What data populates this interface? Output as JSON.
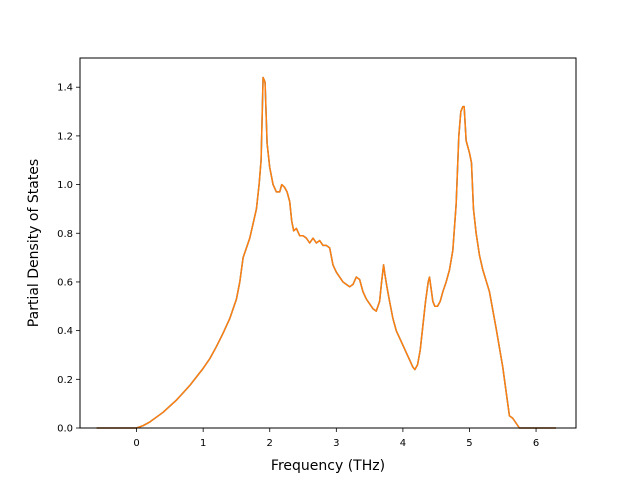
{
  "chart_data": {
    "type": "line",
    "title": "",
    "xlabel": "Frequency (THz)",
    "ylabel": "Partial Density of States",
    "xlim": [
      -0.85,
      6.6
    ],
    "ylim": [
      0.0,
      1.52
    ],
    "x_ticks": [
      0,
      1,
      2,
      3,
      4,
      5,
      6
    ],
    "y_ticks": [
      0.0,
      0.2,
      0.4,
      0.6,
      0.8,
      1.0,
      1.2,
      1.4
    ],
    "x_tick_labels": [
      "0",
      "1",
      "2",
      "3",
      "4",
      "5",
      "6"
    ],
    "y_tick_labels": [
      "0.0",
      "0.2",
      "0.4",
      "0.6",
      "0.8",
      "1.0",
      "1.2",
      "1.4"
    ],
    "grid": false,
    "legend": "none",
    "series": [
      {
        "color": "#1f77b4",
        "x": [
          -0.6,
          0.0,
          0.1,
          0.2,
          0.3,
          0.4,
          0.5,
          0.6,
          0.7,
          0.8,
          0.9,
          1.0,
          1.1,
          1.2,
          1.3,
          1.4,
          1.5,
          1.55,
          1.6,
          1.65,
          1.7,
          1.75,
          1.8,
          1.84,
          1.87,
          1.9,
          1.93,
          1.96,
          2.0,
          2.05,
          2.1,
          2.15,
          2.18,
          2.22,
          2.26,
          2.3,
          2.33,
          2.36,
          2.4,
          2.45,
          2.5,
          2.55,
          2.6,
          2.65,
          2.7,
          2.75,
          2.8,
          2.85,
          2.9,
          2.95,
          3.0,
          3.05,
          3.1,
          3.15,
          3.2,
          3.25,
          3.3,
          3.35,
          3.4,
          3.45,
          3.5,
          3.55,
          3.6,
          3.65,
          3.68,
          3.71,
          3.73,
          3.76,
          3.8,
          3.85,
          3.9,
          3.95,
          4.0,
          4.05,
          4.1,
          4.15,
          4.18,
          4.22,
          4.26,
          4.3,
          4.34,
          4.38,
          4.4,
          4.42,
          4.45,
          4.48,
          4.52,
          4.56,
          4.6,
          4.65,
          4.7,
          4.75,
          4.8,
          4.84,
          4.87,
          4.9,
          4.92,
          4.95,
          5.0,
          5.03,
          5.06,
          5.1,
          5.15,
          5.2,
          5.3,
          5.4,
          5.5,
          5.55,
          5.6,
          5.65,
          5.7,
          5.75,
          6.3
        ],
        "y": [
          0.0,
          0.0,
          0.01,
          0.025,
          0.045,
          0.065,
          0.09,
          0.115,
          0.145,
          0.175,
          0.21,
          0.245,
          0.285,
          0.335,
          0.39,
          0.45,
          0.53,
          0.6,
          0.7,
          0.74,
          0.78,
          0.84,
          0.9,
          1.0,
          1.1,
          1.44,
          1.42,
          1.17,
          1.07,
          1.0,
          0.97,
          0.97,
          1.0,
          0.99,
          0.97,
          0.93,
          0.85,
          0.81,
          0.82,
          0.79,
          0.79,
          0.78,
          0.76,
          0.78,
          0.76,
          0.77,
          0.75,
          0.75,
          0.74,
          0.67,
          0.64,
          0.62,
          0.6,
          0.59,
          0.58,
          0.59,
          0.62,
          0.61,
          0.56,
          0.53,
          0.51,
          0.49,
          0.48,
          0.52,
          0.6,
          0.67,
          0.63,
          0.58,
          0.52,
          0.45,
          0.4,
          0.37,
          0.34,
          0.31,
          0.28,
          0.25,
          0.24,
          0.26,
          0.32,
          0.42,
          0.52,
          0.6,
          0.62,
          0.58,
          0.52,
          0.5,
          0.5,
          0.52,
          0.56,
          0.6,
          0.65,
          0.73,
          0.92,
          1.2,
          1.3,
          1.32,
          1.32,
          1.18,
          1.13,
          1.09,
          0.9,
          0.8,
          0.71,
          0.65,
          0.56,
          0.41,
          0.25,
          0.15,
          0.05,
          0.04,
          0.02,
          0.0,
          0.0
        ]
      },
      {
        "color": "#ff7f0e",
        "x": [
          -0.6,
          0.0,
          0.1,
          0.2,
          0.3,
          0.4,
          0.5,
          0.6,
          0.7,
          0.8,
          0.9,
          1.0,
          1.1,
          1.2,
          1.3,
          1.4,
          1.5,
          1.55,
          1.6,
          1.65,
          1.7,
          1.75,
          1.8,
          1.84,
          1.87,
          1.9,
          1.93,
          1.96,
          2.0,
          2.05,
          2.1,
          2.15,
          2.18,
          2.22,
          2.26,
          2.3,
          2.33,
          2.36,
          2.4,
          2.45,
          2.5,
          2.55,
          2.6,
          2.65,
          2.7,
          2.75,
          2.8,
          2.85,
          2.9,
          2.95,
          3.0,
          3.05,
          3.1,
          3.15,
          3.2,
          3.25,
          3.3,
          3.35,
          3.4,
          3.45,
          3.5,
          3.55,
          3.6,
          3.65,
          3.68,
          3.71,
          3.73,
          3.76,
          3.8,
          3.85,
          3.9,
          3.95,
          4.0,
          4.05,
          4.1,
          4.15,
          4.18,
          4.22,
          4.26,
          4.3,
          4.34,
          4.38,
          4.4,
          4.42,
          4.45,
          4.48,
          4.52,
          4.56,
          4.6,
          4.65,
          4.7,
          4.75,
          4.8,
          4.84,
          4.87,
          4.9,
          4.92,
          4.95,
          5.0,
          5.03,
          5.06,
          5.1,
          5.15,
          5.2,
          5.3,
          5.4,
          5.5,
          5.55,
          5.6,
          5.65,
          5.7,
          5.75,
          6.3
        ],
        "y": [
          0.0,
          0.0,
          0.01,
          0.025,
          0.045,
          0.065,
          0.09,
          0.115,
          0.145,
          0.175,
          0.21,
          0.245,
          0.285,
          0.335,
          0.39,
          0.45,
          0.53,
          0.6,
          0.7,
          0.74,
          0.78,
          0.84,
          0.9,
          1.0,
          1.1,
          1.44,
          1.42,
          1.17,
          1.07,
          1.0,
          0.97,
          0.97,
          1.0,
          0.99,
          0.97,
          0.93,
          0.85,
          0.81,
          0.82,
          0.79,
          0.79,
          0.78,
          0.76,
          0.78,
          0.76,
          0.77,
          0.75,
          0.75,
          0.74,
          0.67,
          0.64,
          0.62,
          0.6,
          0.59,
          0.58,
          0.59,
          0.62,
          0.61,
          0.56,
          0.53,
          0.51,
          0.49,
          0.48,
          0.52,
          0.6,
          0.67,
          0.63,
          0.58,
          0.52,
          0.45,
          0.4,
          0.37,
          0.34,
          0.31,
          0.28,
          0.25,
          0.24,
          0.26,
          0.32,
          0.42,
          0.52,
          0.6,
          0.62,
          0.58,
          0.52,
          0.5,
          0.5,
          0.52,
          0.56,
          0.6,
          0.65,
          0.73,
          0.92,
          1.2,
          1.3,
          1.32,
          1.32,
          1.18,
          1.13,
          1.09,
          0.9,
          0.8,
          0.71,
          0.65,
          0.56,
          0.41,
          0.25,
          0.15,
          0.05,
          0.04,
          0.02,
          0.0,
          0.0
        ]
      }
    ]
  }
}
